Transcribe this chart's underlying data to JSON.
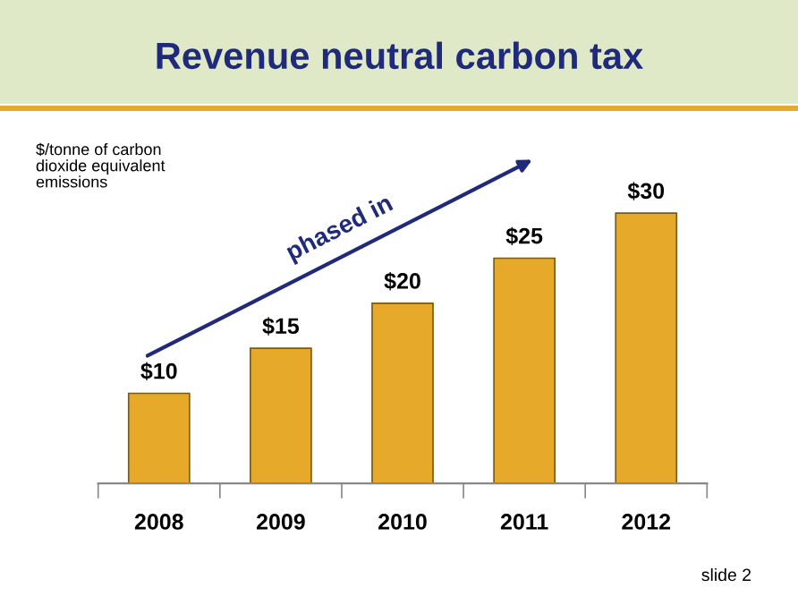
{
  "chart_data": {
    "type": "bar",
    "title": "Revenue neutral carbon tax",
    "ylabel": "$/tonne of carbon\ndioxide equivalent\nemissions",
    "categories": [
      "2008",
      "2009",
      "2010",
      "2011",
      "2012"
    ],
    "values": [
      10,
      15,
      20,
      25,
      30
    ],
    "color": "#e6a92a",
    "value_labels": [
      "$10",
      "$15",
      "$20",
      "$25",
      "$30"
    ],
    "annotations": [
      "phased in",
      "slide 2"
    ],
    "grid": false,
    "legend": false
  }
}
